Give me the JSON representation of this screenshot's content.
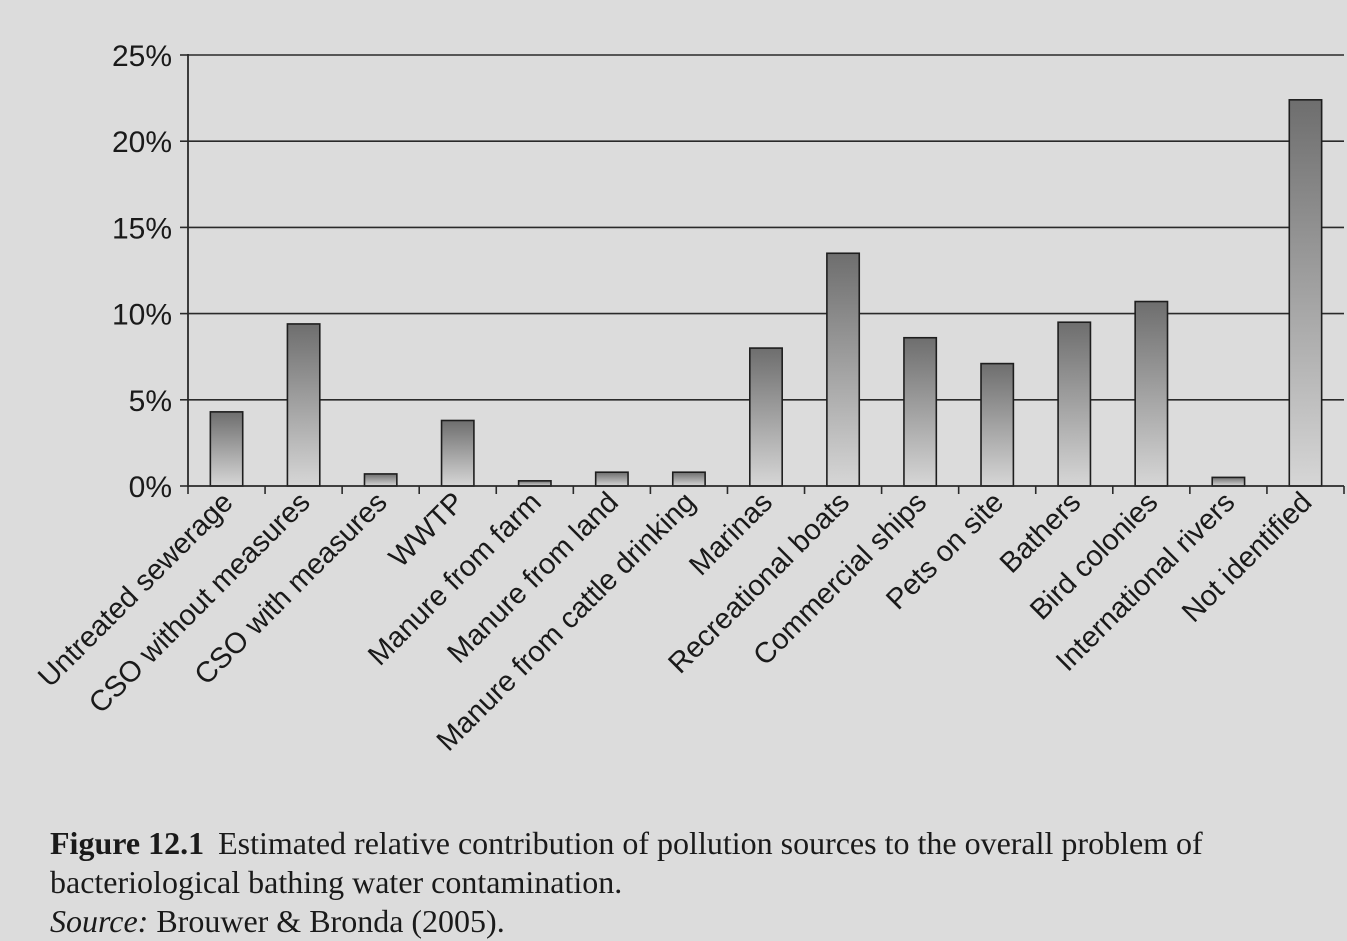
{
  "chart_data": {
    "type": "bar",
    "categories": [
      "Untreated sewerage",
      "CSO without measures",
      "CSO with measures",
      "WWTP",
      "Manure from farm",
      "Manure from land",
      "Manure from cattle drinking",
      "Marinas",
      "Recreational boats",
      "Commercial ships",
      "Pets on site",
      "Bathers",
      "Bird colonies",
      "International rivers",
      "Not identified"
    ],
    "values": [
      4.3,
      9.4,
      0.7,
      3.8,
      0.3,
      0.8,
      0.8,
      8.0,
      13.5,
      8.6,
      7.1,
      9.5,
      10.7,
      0.5,
      22.4
    ],
    "yticks": [
      "0%",
      "5%",
      "10%",
      "15%",
      "20%",
      "25%"
    ],
    "ylim": [
      0,
      25
    ],
    "ytick_step": 5,
    "grid": true,
    "bar_gradient": [
      "#6e6e6e",
      "#d6d6d6"
    ],
    "title": "",
    "xlabel": "",
    "ylabel": ""
  },
  "caption": {
    "figure_number": "Figure 12.1",
    "text": "Estimated relative contribution of pollution sources to the overall problem of bacteriological bathing water contamination.",
    "source_label": "Source:",
    "source_text": "Brouwer & Bronda (2005)."
  }
}
